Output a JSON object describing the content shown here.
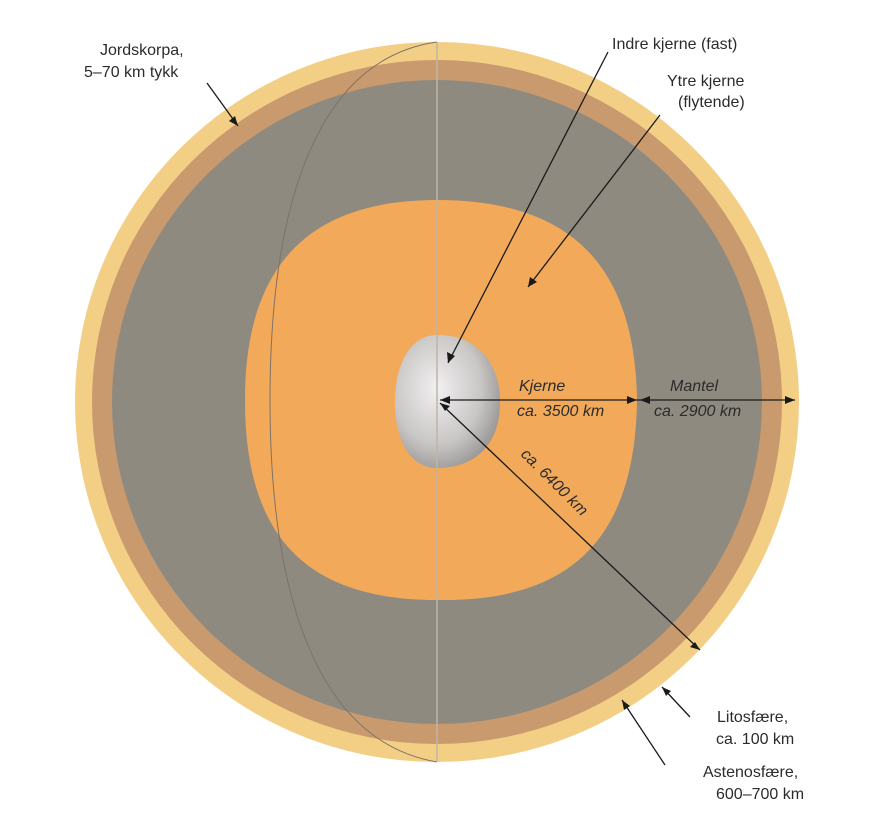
{
  "colors": {
    "ocean": "#a9aee0",
    "land": "#c9de8c",
    "crust": "#f3cf86",
    "asthenosphere": "#c99a6e",
    "mantle": "#8f8a80",
    "outer_core": "#f2aa5a",
    "inner_core": "#c9c6c6",
    "leader": "#1a1a1a"
  },
  "labels": {
    "crust": [
      "Jordskorpa,",
      "5–70 km tykk"
    ],
    "inner_core": [
      "Indre kjerne (fast)"
    ],
    "outer_core": [
      "Ytre kjerne",
      "(flytende)"
    ],
    "core_dist": [
      "Kjerne",
      "ca. 3500 km"
    ],
    "mantle_dist": [
      "Mantel",
      "ca. 2900 km"
    ],
    "radius": "ca. 6400 km",
    "lithosphere": [
      "Litosfære,",
      "ca. 100 km"
    ],
    "asthenosphere": [
      "Astenosfære,",
      "600–700 km"
    ]
  }
}
